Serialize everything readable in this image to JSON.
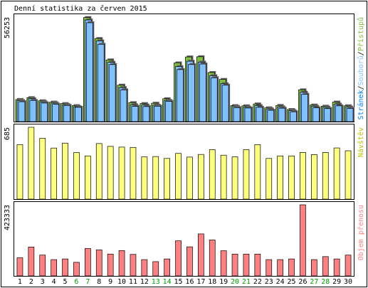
{
  "title": "Denní statistika za červen 2015",
  "colors": {
    "hits": "#80c040",
    "files": "#80c0ff",
    "pages": "#0080ff",
    "visits": "#ffff80",
    "visits_outline": "#c0c000",
    "kbytes": "#ff8080",
    "weekend": "#00a000",
    "frame": "#000000",
    "panel_bg": "#ffffff"
  },
  "chart_data": [
    {
      "type": "bar",
      "name": "hits-files-pages",
      "categories": [
        "1",
        "2",
        "3",
        "4",
        "5",
        "6",
        "7",
        "8",
        "9",
        "10",
        "11",
        "12",
        "13",
        "14",
        "15",
        "16",
        "17",
        "18",
        "19",
        "20",
        "21",
        "22",
        "23",
        "24",
        "25",
        "26",
        "27",
        "28",
        "29",
        "30"
      ],
      "weekend_categories": [
        "6",
        "7",
        "13",
        "14",
        "20",
        "21",
        "27",
        "28"
      ],
      "ylabel": "56253",
      "ymax": 56253,
      "legend": {
        "placement": "right-vertical",
        "parts": [
          "Stránek",
          "Souborů",
          "Přístupů"
        ],
        "separator": "/"
      },
      "series": [
        {
          "name": "Přístupů",
          "values": [
            11900,
            12900,
            11200,
            10500,
            9700,
            8600,
            56000,
            44700,
            33200,
            19600,
            10200,
            9700,
            9900,
            12300,
            31600,
            34800,
            34900,
            26400,
            22700,
            8600,
            8500,
            9500,
            7400,
            8700,
            6500,
            17100,
            8900,
            8300,
            10500,
            8500
          ]
        },
        {
          "name": "Souborů",
          "values": [
            11300,
            12300,
            10600,
            9900,
            9100,
            8000,
            54700,
            43400,
            31900,
            18300,
            9000,
            8900,
            8800,
            11400,
            29600,
            32500,
            32000,
            24700,
            20400,
            8100,
            7800,
            8600,
            6800,
            7900,
            5900,
            15800,
            8200,
            7700,
            9400,
            7800
          ]
        },
        {
          "name": "Stránek",
          "values": [
            10700,
            11400,
            10000,
            9300,
            8700,
            7700,
            53200,
            41600,
            30700,
            17100,
            8200,
            8100,
            8300,
            10900,
            28000,
            30700,
            31000,
            23600,
            19600,
            7500,
            7300,
            7700,
            6100,
            7200,
            5300,
            14700,
            7400,
            7000,
            8500,
            7100
          ]
        }
      ]
    },
    {
      "type": "bar",
      "name": "visits",
      "categories": [
        "1",
        "2",
        "3",
        "4",
        "5",
        "6",
        "7",
        "8",
        "9",
        "10",
        "11",
        "12",
        "13",
        "14",
        "15",
        "16",
        "17",
        "18",
        "19",
        "20",
        "21",
        "22",
        "23",
        "24",
        "25",
        "26",
        "27",
        "28",
        "29",
        "30"
      ],
      "ylabel": "685",
      "ymax": 685,
      "legend": {
        "placement": "right-vertical",
        "parts": [
          "Návštěv"
        ]
      },
      "series": [
        {
          "name": "Návštěv",
          "values": [
            520,
            685,
            580,
            487,
            534,
            444,
            412,
            530,
            503,
            496,
            493,
            403,
            406,
            388,
            436,
            401,
            426,
            472,
            419,
            403,
            472,
            520,
            388,
            412,
            412,
            445,
            425,
            445,
            488,
            461
          ]
        }
      ]
    },
    {
      "type": "bar",
      "name": "kbytes",
      "categories": [
        "1",
        "2",
        "3",
        "4",
        "5",
        "6",
        "7",
        "8",
        "9",
        "10",
        "11",
        "12",
        "13",
        "14",
        "15",
        "16",
        "17",
        "18",
        "19",
        "20",
        "21",
        "22",
        "23",
        "24",
        "25",
        "26",
        "27",
        "28",
        "29",
        "30"
      ],
      "ylabel": "423333",
      "ymax": 423333,
      "legend": {
        "placement": "right-vertical",
        "parts": [
          "Objem přenosu"
        ]
      },
      "series": [
        {
          "name": "Objem přenosu",
          "values": [
            108000,
            172000,
            124000,
            97000,
            101000,
            81000,
            163000,
            155000,
            130000,
            151000,
            128000,
            97000,
            85000,
            101000,
            209000,
            173000,
            250000,
            214000,
            150000,
            130000,
            130000,
            130000,
            97000,
            97000,
            101000,
            423333,
            97000,
            115000,
            101000,
            124000
          ]
        }
      ]
    }
  ]
}
